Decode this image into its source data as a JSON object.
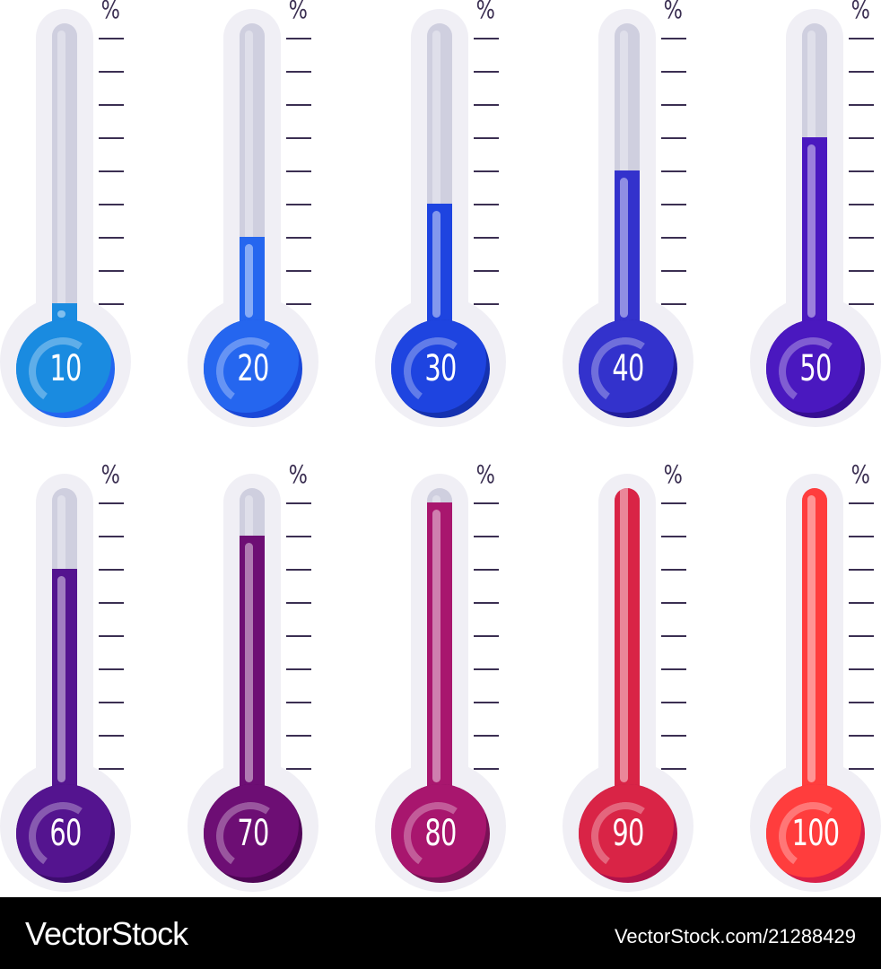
{
  "chart_data": {
    "type": "thermometer-gauges",
    "title": "",
    "unit_label": "%",
    "tick_count": 9,
    "layout": {
      "rows": 2,
      "columns": 5
    },
    "gauges": [
      {
        "label": "10",
        "value": 10,
        "fill_color": "#1a8be0",
        "shade_color": "#2366f0"
      },
      {
        "label": "20",
        "value": 20,
        "fill_color": "#2566ef",
        "shade_color": "#1a48d8"
      },
      {
        "label": "30",
        "value": 30,
        "fill_color": "#1e44e0",
        "shade_color": "#1532b0"
      },
      {
        "label": "40",
        "value": 40,
        "fill_color": "#3332cc",
        "shade_color": "#211d9c"
      },
      {
        "label": "50",
        "value": 50,
        "fill_color": "#4a18bf",
        "shade_color": "#360e92"
      },
      {
        "label": "60",
        "value": 60,
        "fill_color": "#54148f",
        "shade_color": "#3d0c6e"
      },
      {
        "label": "70",
        "value": 70,
        "fill_color": "#6d0e74",
        "shade_color": "#4f0656"
      },
      {
        "label": "80",
        "value": 80,
        "fill_color": "#a8166e",
        "shade_color": "#7a1156"
      },
      {
        "label": "90",
        "value": 90,
        "fill_color": "#d92446",
        "shade_color": "#b0124a"
      },
      {
        "label": "100",
        "value": 100,
        "fill_color": "#ff3d3d",
        "shade_color": "#d81f48"
      }
    ]
  },
  "footer": {
    "brand": "VectorStock",
    "url": "VectorStock.com/21288429"
  }
}
